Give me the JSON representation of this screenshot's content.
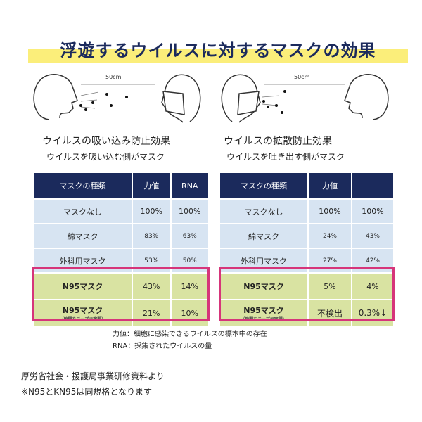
{
  "title": "浮遊するウイルスに対するマスクの効果",
  "colors": {
    "header": "#1b2a5c",
    "row": "#d7e4f2",
    "highlight_row": "#d9e3a2",
    "highlight_border": "#d6357a",
    "title_underline": "#fbee7a"
  },
  "left": {
    "distance": "50cm",
    "heading": "ウイルスの吸い込み防止効果",
    "subheading": "ウイルスを吸い込む側がマスク",
    "columns": [
      "マスクの種類",
      "力値",
      "RNA"
    ],
    "rows": [
      {
        "type": "マスクなし",
        "titer": "100%",
        "rna": "100%"
      },
      {
        "type": "綿マスク",
        "titer": "83%",
        "rna": "63%"
      },
      {
        "type": "外科用マスク",
        "titer": "53%",
        "rna": "50%"
      },
      {
        "type": "N95マスク",
        "titer": "43%",
        "rna": "14%"
      },
      {
        "type": "N95マスク",
        "note": "（隙間をテープで密閉）",
        "titer": "21%",
        "rna": "10%"
      }
    ]
  },
  "right": {
    "distance": "50cm",
    "heading": "ウイルスの拡散防止効果",
    "subheading": "ウイルスを吐き出す側がマスク",
    "columns": [
      "マスクの種類",
      "力値",
      ""
    ],
    "rows": [
      {
        "type": "マスクなし",
        "titer": "100%",
        "rna": "100%"
      },
      {
        "type": "綿マスク",
        "titer": "24%",
        "rna": "43%"
      },
      {
        "type": "外科用マスク",
        "titer": "27%",
        "rna": "42%"
      },
      {
        "type": "N95マスク",
        "titer": "5%",
        "rna": "4%"
      },
      {
        "type": "N95マスク",
        "note": "（隙間をテープで密閉）",
        "titer": "不検出",
        "rna": "0.3%↓"
      }
    ]
  },
  "notes": [
    "力値：細胞に感染できるウイルスの標本中の存在",
    "RNA：採集されたウイルスの量"
  ],
  "footer": [
    "厚労省社会・援護局事業研修資料より",
    "※N95とKN95は同規格となります"
  ]
}
